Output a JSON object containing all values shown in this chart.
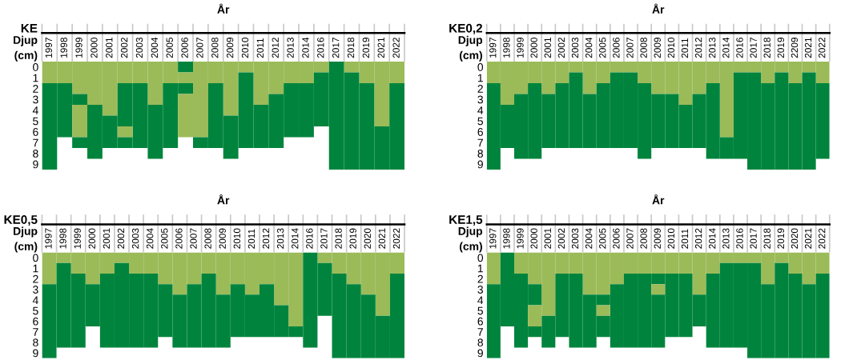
{
  "chart_data": [
    {
      "type": "bar",
      "stacked": true,
      "title": "KE",
      "xlabel": "År",
      "ylabel": "Djup\n(cm)",
      "categories": [
        "1997",
        "1998",
        "1999",
        "2000",
        "2001",
        "2002",
        "2003",
        "2004",
        "2005",
        "2006",
        "2007",
        "2008",
        "2009",
        "2010",
        "2011",
        "2012",
        "2013",
        "2014",
        "2016",
        "2017",
        "2018",
        "2019",
        "2021",
        "2022"
      ],
      "series": [
        {
          "color": "#9bbb59",
          "values": [
            2,
            2,
            3,
            4,
            5,
            2,
            2,
            4,
            2,
            0,
            7,
            2,
            5,
            1,
            4,
            3,
            2,
            2,
            1,
            0,
            1,
            2,
            6,
            2
          ]
        },
        {
          "color": "#00843d",
          "values": [
            8,
            5,
            1,
            5,
            3,
            4,
            6,
            5,
            6,
            1,
            1,
            6,
            4,
            7,
            4,
            5,
            5,
            5,
            5,
            10,
            9,
            8,
            4,
            8
          ]
        },
        {
          "color": "#9bbb59",
          "values": [
            null,
            null,
            3,
            null,
            null,
            1,
            null,
            null,
            null,
            1,
            null,
            null,
            null,
            null,
            null,
            null,
            null,
            null,
            null,
            null,
            null,
            null,
            null,
            null
          ]
        },
        {
          "color": "#00843d",
          "values": [
            null,
            null,
            1,
            null,
            null,
            1,
            null,
            null,
            null,
            1,
            null,
            null,
            null,
            null,
            null,
            null,
            null,
            null,
            null,
            null,
            null,
            null,
            null,
            null
          ]
        },
        {
          "color": "#9bbb59",
          "values": [
            null,
            null,
            null,
            null,
            null,
            null,
            null,
            null,
            null,
            4,
            null,
            null,
            null,
            null,
            null,
            null,
            null,
            null,
            null,
            null,
            null,
            null,
            null,
            null
          ]
        }
      ],
      "ylim": [
        10,
        0
      ],
      "yticks": [
        {
          "value": 0.5,
          "label": "0"
        },
        {
          "value": 1.5,
          "label": "1"
        },
        {
          "value": 2.5,
          "label": "2"
        },
        {
          "value": 3.5,
          "label": "3"
        },
        {
          "value": 4.5,
          "label": "4"
        },
        {
          "value": 5.5,
          "label": "5"
        },
        {
          "value": 6.5,
          "label": "6"
        },
        {
          "value": 7.5,
          "label": "7"
        },
        {
          "value": 8.5,
          "label": "8"
        },
        {
          "value": 9.5,
          "label": "9"
        }
      ]
    },
    {
      "type": "bar",
      "stacked": true,
      "title": "KE0,2",
      "xlabel": "År",
      "ylabel": "Djup\n(cm)",
      "categories": [
        "1997",
        "1998",
        "1999",
        "2000",
        "2001",
        "2002",
        "2003",
        "2004",
        "2005",
        "2006",
        "2007",
        "2008",
        "2009",
        "2010",
        "2011",
        "2012",
        "2013",
        "2014",
        "2016",
        "2017",
        "2018",
        "2019",
        "2209",
        "2021",
        "2022"
      ],
      "series": [
        {
          "color": "#9bbb59",
          "values": [
            2,
            4,
            3,
            2,
            3,
            2,
            1,
            3,
            2,
            1,
            1,
            2,
            3,
            3,
            4,
            3,
            2,
            7,
            1,
            1,
            2,
            1,
            2,
            1,
            2
          ]
        },
        {
          "color": "#00843d",
          "values": [
            8,
            4,
            6,
            7,
            5,
            6,
            7,
            5,
            6,
            7,
            7,
            7,
            5,
            5,
            4,
            5,
            7,
            2,
            8,
            9,
            8,
            9,
            8,
            9,
            7
          ]
        }
      ],
      "ylim": [
        10,
        0
      ],
      "yticks": [
        {
          "value": 0.5,
          "label": "0"
        },
        {
          "value": 1.5,
          "label": "1"
        },
        {
          "value": 2.5,
          "label": "2"
        },
        {
          "value": 3.5,
          "label": "3"
        },
        {
          "value": 4.5,
          "label": "4"
        },
        {
          "value": 5.5,
          "label": "5"
        },
        {
          "value": 6.5,
          "label": "6"
        },
        {
          "value": 7.5,
          "label": "7"
        },
        {
          "value": 8.5,
          "label": "8"
        },
        {
          "value": 9.5,
          "label": "9"
        }
      ]
    },
    {
      "type": "bar",
      "stacked": true,
      "title": "KE0,5",
      "xlabel": "År",
      "ylabel": "Djup\n(cm)",
      "categories": [
        "1997",
        "1998",
        "1999",
        "2000",
        "2001",
        "2002",
        "2003",
        "2004",
        "2005",
        "2006",
        "2007",
        "2008",
        "2009",
        "2010",
        "2011",
        "2012",
        "2013",
        "2014",
        "2016",
        "2017",
        "2018",
        "2019",
        "2020",
        "2021",
        "2022"
      ],
      "series": [
        {
          "color": "#9bbb59",
          "values": [
            3,
            1,
            2,
            3,
            2,
            1,
            2,
            2,
            3,
            4,
            3,
            2,
            4,
            3,
            4,
            3,
            5,
            7,
            0,
            1,
            2,
            3,
            4,
            6,
            2
          ]
        },
        {
          "color": "#00843d",
          "values": [
            7,
            8,
            7,
            4,
            7,
            8,
            7,
            7,
            5,
            5,
            6,
            7,
            5,
            5,
            4,
            5,
            3,
            1,
            9,
            5,
            8,
            7,
            6,
            4,
            8
          ]
        }
      ],
      "ylim": [
        10,
        0
      ],
      "yticks": [
        {
          "value": 0.5,
          "label": "0"
        },
        {
          "value": 1.5,
          "label": "1"
        },
        {
          "value": 2.5,
          "label": "2"
        },
        {
          "value": 3.5,
          "label": "3"
        },
        {
          "value": 4.5,
          "label": "4"
        },
        {
          "value": 5.5,
          "label": "5"
        },
        {
          "value": 6.5,
          "label": "6"
        },
        {
          "value": 7.5,
          "label": "7"
        },
        {
          "value": 8.5,
          "label": "8"
        },
        {
          "value": 9.5,
          "label": "9"
        }
      ]
    },
    {
      "type": "bar",
      "stacked": true,
      "title": "KE1,5",
      "xlabel": "År",
      "ylabel": "Djup\n(cm)",
      "categories": [
        "1997",
        "1998",
        "1999",
        "2000",
        "2001",
        "2002",
        "2003",
        "2004",
        "2005",
        "2006",
        "2007",
        "2008",
        "2009",
        "2010",
        "2011",
        "2012",
        "2014",
        "2013",
        "2016",
        "2017",
        "2018",
        "2019",
        "2020",
        "2021",
        "2022"
      ],
      "series": [
        {
          "color": "#9bbb59",
          "values": [
            3,
            0,
            2,
            3,
            6,
            2,
            2,
            4,
            4,
            3,
            2,
            2,
            2,
            2,
            2,
            4,
            2,
            1,
            1,
            1,
            3,
            1,
            2,
            3,
            2
          ]
        },
        {
          "color": "#00843d",
          "values": [
            7,
            7,
            7,
            2,
            3,
            6,
            7,
            5,
            1,
            6,
            7,
            7,
            1,
            6,
            6,
            3,
            7,
            8,
            8,
            9,
            7,
            9,
            8,
            7,
            8
          ]
        },
        {
          "color": "#9bbb59",
          "values": [
            null,
            null,
            null,
            2,
            null,
            null,
            null,
            null,
            1,
            null,
            null,
            null,
            1,
            null,
            null,
            null,
            null,
            null,
            null,
            null,
            null,
            null,
            null,
            null,
            null
          ]
        },
        {
          "color": "#00843d",
          "values": [
            null,
            null,
            null,
            1,
            null,
            null,
            null,
            null,
            2,
            null,
            null,
            null,
            5,
            null,
            null,
            null,
            null,
            null,
            null,
            null,
            null,
            null,
            null,
            null,
            null
          ]
        }
      ],
      "ylim": [
        10,
        0
      ],
      "yticks": [
        {
          "value": 0.5,
          "label": "0"
        },
        {
          "value": 1.5,
          "label": "1"
        },
        {
          "value": 2.5,
          "label": "2"
        },
        {
          "value": 3.5,
          "label": "3"
        },
        {
          "value": 4.5,
          "label": "4"
        },
        {
          "value": 5.5,
          "label": "5"
        },
        {
          "value": 6.5,
          "label": "6"
        },
        {
          "value": 7.5,
          "label": "7"
        },
        {
          "value": 8.5,
          "label": "8"
        },
        {
          "value": 9.5,
          "label": "9"
        }
      ]
    }
  ]
}
